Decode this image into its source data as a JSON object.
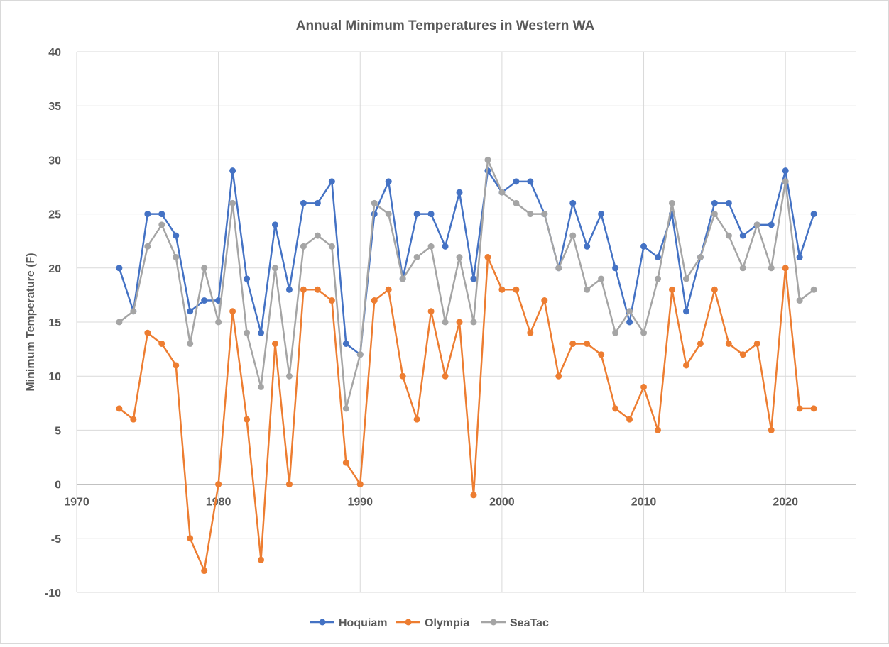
{
  "chart_data": {
    "type": "line",
    "title": "Annual Minimum Temperatures in Western WA",
    "xlabel": "",
    "ylabel": "Minimum Temperature (F)",
    "xlim": [
      1970,
      2025
    ],
    "ylim": [
      -10,
      40
    ],
    "xticks": [
      1970,
      1980,
      1990,
      2000,
      2010,
      2020
    ],
    "yticks": [
      -10,
      -5,
      0,
      5,
      10,
      15,
      20,
      25,
      30,
      35,
      40
    ],
    "grid": true,
    "legend_position": "bottom",
    "x": [
      1973,
      1974,
      1975,
      1976,
      1977,
      1978,
      1979,
      1980,
      1981,
      1982,
      1983,
      1984,
      1985,
      1986,
      1987,
      1988,
      1989,
      1990,
      1991,
      1992,
      1993,
      1994,
      1995,
      1996,
      1997,
      1998,
      1999,
      2000,
      2001,
      2002,
      2003,
      2004,
      2005,
      2006,
      2007,
      2008,
      2009,
      2010,
      2011,
      2012,
      2013,
      2014,
      2015,
      2016,
      2017,
      2018,
      2019,
      2020,
      2021,
      2022
    ],
    "series": [
      {
        "name": "Hoquiam",
        "color": "#4472c4",
        "values": [
          20,
          16,
          25,
          25,
          23,
          16,
          17,
          17,
          29,
          19,
          14,
          24,
          18,
          26,
          26,
          28,
          13,
          12,
          25,
          28,
          19,
          25,
          25,
          22,
          27,
          19,
          29,
          27,
          28,
          28,
          25,
          20,
          26,
          22,
          25,
          20,
          15,
          22,
          21,
          25,
          16,
          21,
          26,
          26,
          23,
          24,
          24,
          29,
          21,
          25
        ]
      },
      {
        "name": "Olympia",
        "color": "#ed7d31",
        "values": [
          7,
          6,
          14,
          13,
          11,
          -5,
          -8,
          0,
          16,
          6,
          -7,
          13,
          0,
          18,
          18,
          17,
          2,
          0,
          17,
          18,
          10,
          6,
          16,
          10,
          15,
          -1,
          21,
          18,
          18,
          14,
          17,
          10,
          13,
          13,
          12,
          7,
          6,
          9,
          5,
          18,
          11,
          13,
          18,
          13,
          12,
          13,
          5,
          20,
          7,
          7
        ]
      },
      {
        "name": "SeaTac",
        "color": "#a5a5a5",
        "values": [
          15,
          16,
          22,
          24,
          21,
          13,
          20,
          15,
          26,
          14,
          9,
          20,
          10,
          22,
          23,
          22,
          7,
          12,
          26,
          25,
          19,
          21,
          22,
          15,
          21,
          15,
          30,
          27,
          26,
          25,
          25,
          20,
          23,
          18,
          19,
          14,
          16,
          14,
          19,
          26,
          19,
          21,
          25,
          23,
          20,
          24,
          20,
          28,
          17,
          18
        ]
      }
    ]
  }
}
